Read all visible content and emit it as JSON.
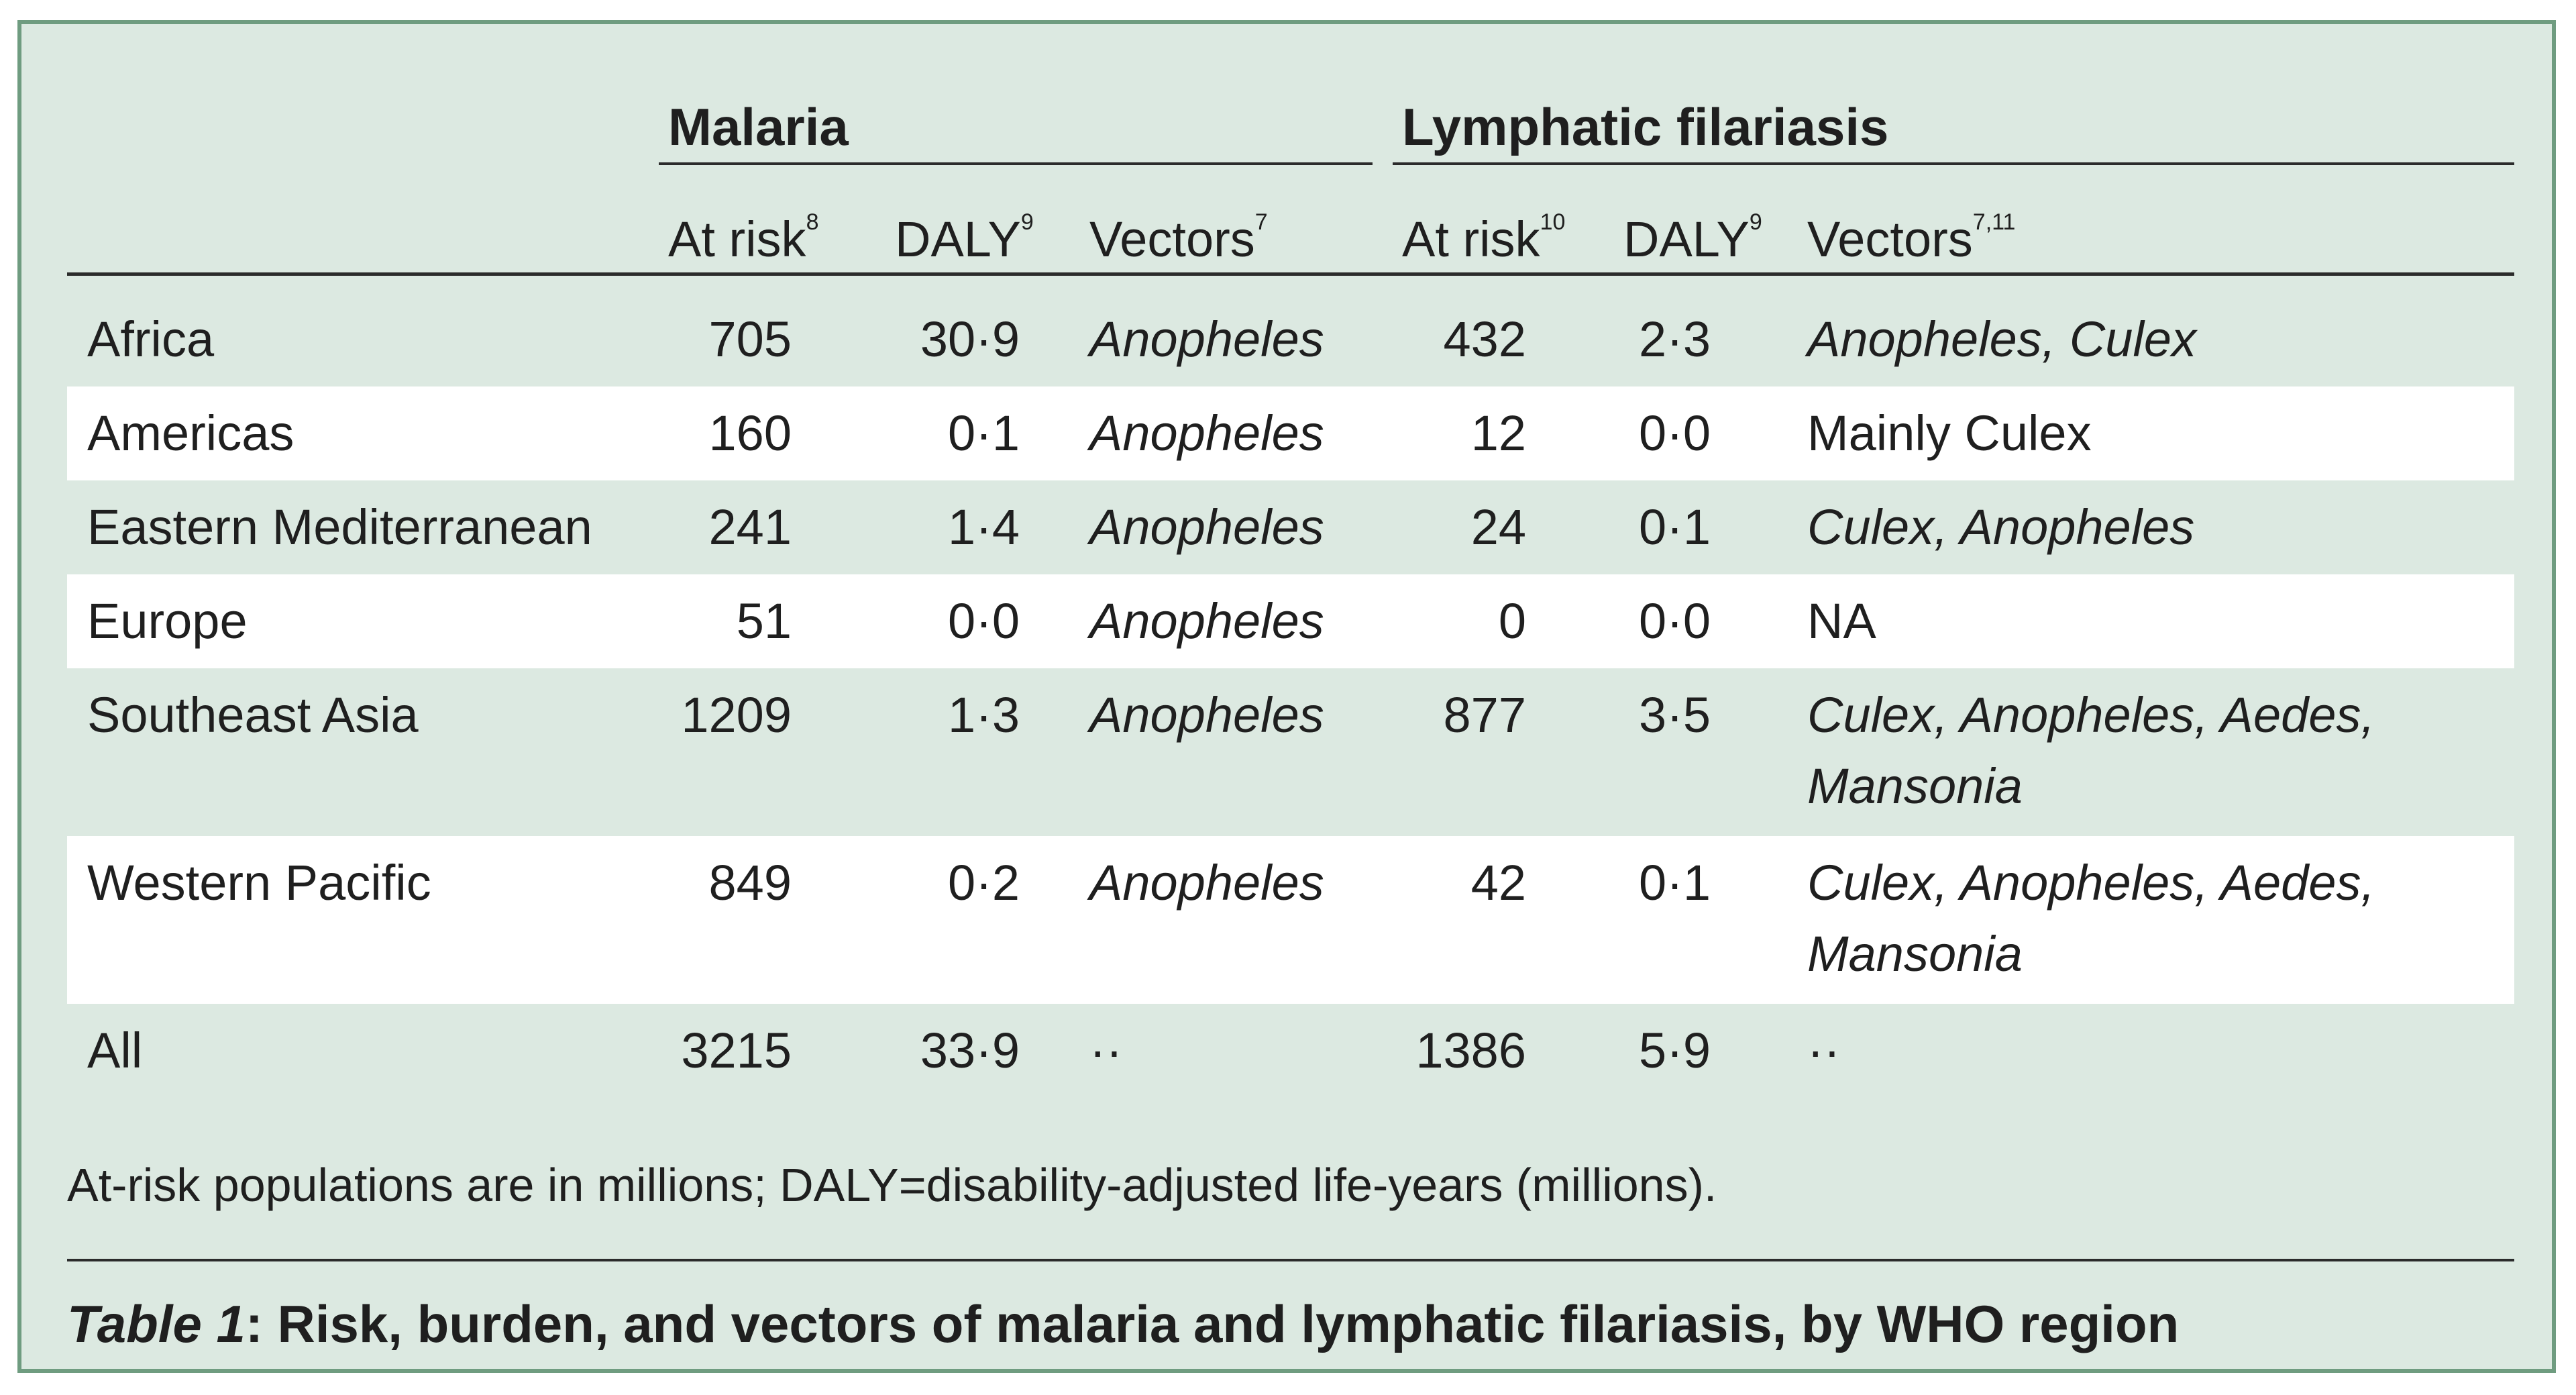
{
  "groups": {
    "malaria": "Malaria",
    "lf": "Lymphatic filariasis"
  },
  "columns": {
    "malaria_at_risk": {
      "label": "At risk",
      "ref": "8"
    },
    "malaria_daly": {
      "label": "DALY",
      "ref": "9"
    },
    "malaria_vectors": {
      "label": "Vectors",
      "ref": "7"
    },
    "lf_at_risk": {
      "label": "At risk",
      "ref": "10"
    },
    "lf_daly": {
      "label": "DALY",
      "ref": "9"
    },
    "lf_vectors": {
      "label": "Vectors",
      "ref": "7,11"
    }
  },
  "rows": [
    {
      "region": "Africa",
      "m_risk": "705",
      "m_daly": "30·9",
      "m_vec": "Anopheles",
      "l_risk": "432",
      "l_daly": "2·3",
      "l_vec1": "Anopheles, Culex",
      "l_vec2": ""
    },
    {
      "region": "Americas",
      "m_risk": "160",
      "m_daly": "0·1",
      "m_vec": "Anopheles",
      "l_risk": "12",
      "l_daly": "0·0",
      "l_vec1": "Mainly Culex",
      "l_vec2": ""
    },
    {
      "region": "Eastern Mediterranean",
      "m_risk": "241",
      "m_daly": "1·4",
      "m_vec": "Anopheles",
      "l_risk": "24",
      "l_daly": "0·1",
      "l_vec1": "Culex, Anopheles",
      "l_vec2": ""
    },
    {
      "region": "Europe",
      "m_risk": "51",
      "m_daly": "0·0",
      "m_vec": "Anopheles",
      "l_risk": "0",
      "l_daly": "0·0",
      "l_vec1": "NA",
      "l_vec2": ""
    },
    {
      "region": "Southeast Asia",
      "m_risk": "1209",
      "m_daly": "1·3",
      "m_vec": "Anopheles",
      "l_risk": "877",
      "l_daly": "3·5",
      "l_vec1": "Culex, Anopheles, Aedes,",
      "l_vec2": "Mansonia"
    },
    {
      "region": "Western Pacific",
      "m_risk": "849",
      "m_daly": "0·2",
      "m_vec": "Anopheles",
      "l_risk": "42",
      "l_daly": "0·1",
      "l_vec1": "Culex, Anopheles, Aedes,",
      "l_vec2": "Mansonia"
    },
    {
      "region": "All",
      "m_risk": "3215",
      "m_daly": "33·9",
      "m_vec": "··",
      "l_risk": "1386",
      "l_daly": "5·9",
      "l_vec1": "··",
      "l_vec2": ""
    }
  ],
  "footnote": "At-risk populations are in millions; DALY=disability-adjusted life-years (millions).",
  "caption": {
    "label": "Table 1",
    "text": ": Risk, burden, and vectors of malaria and lymphatic filariasis, by WHO region"
  }
}
